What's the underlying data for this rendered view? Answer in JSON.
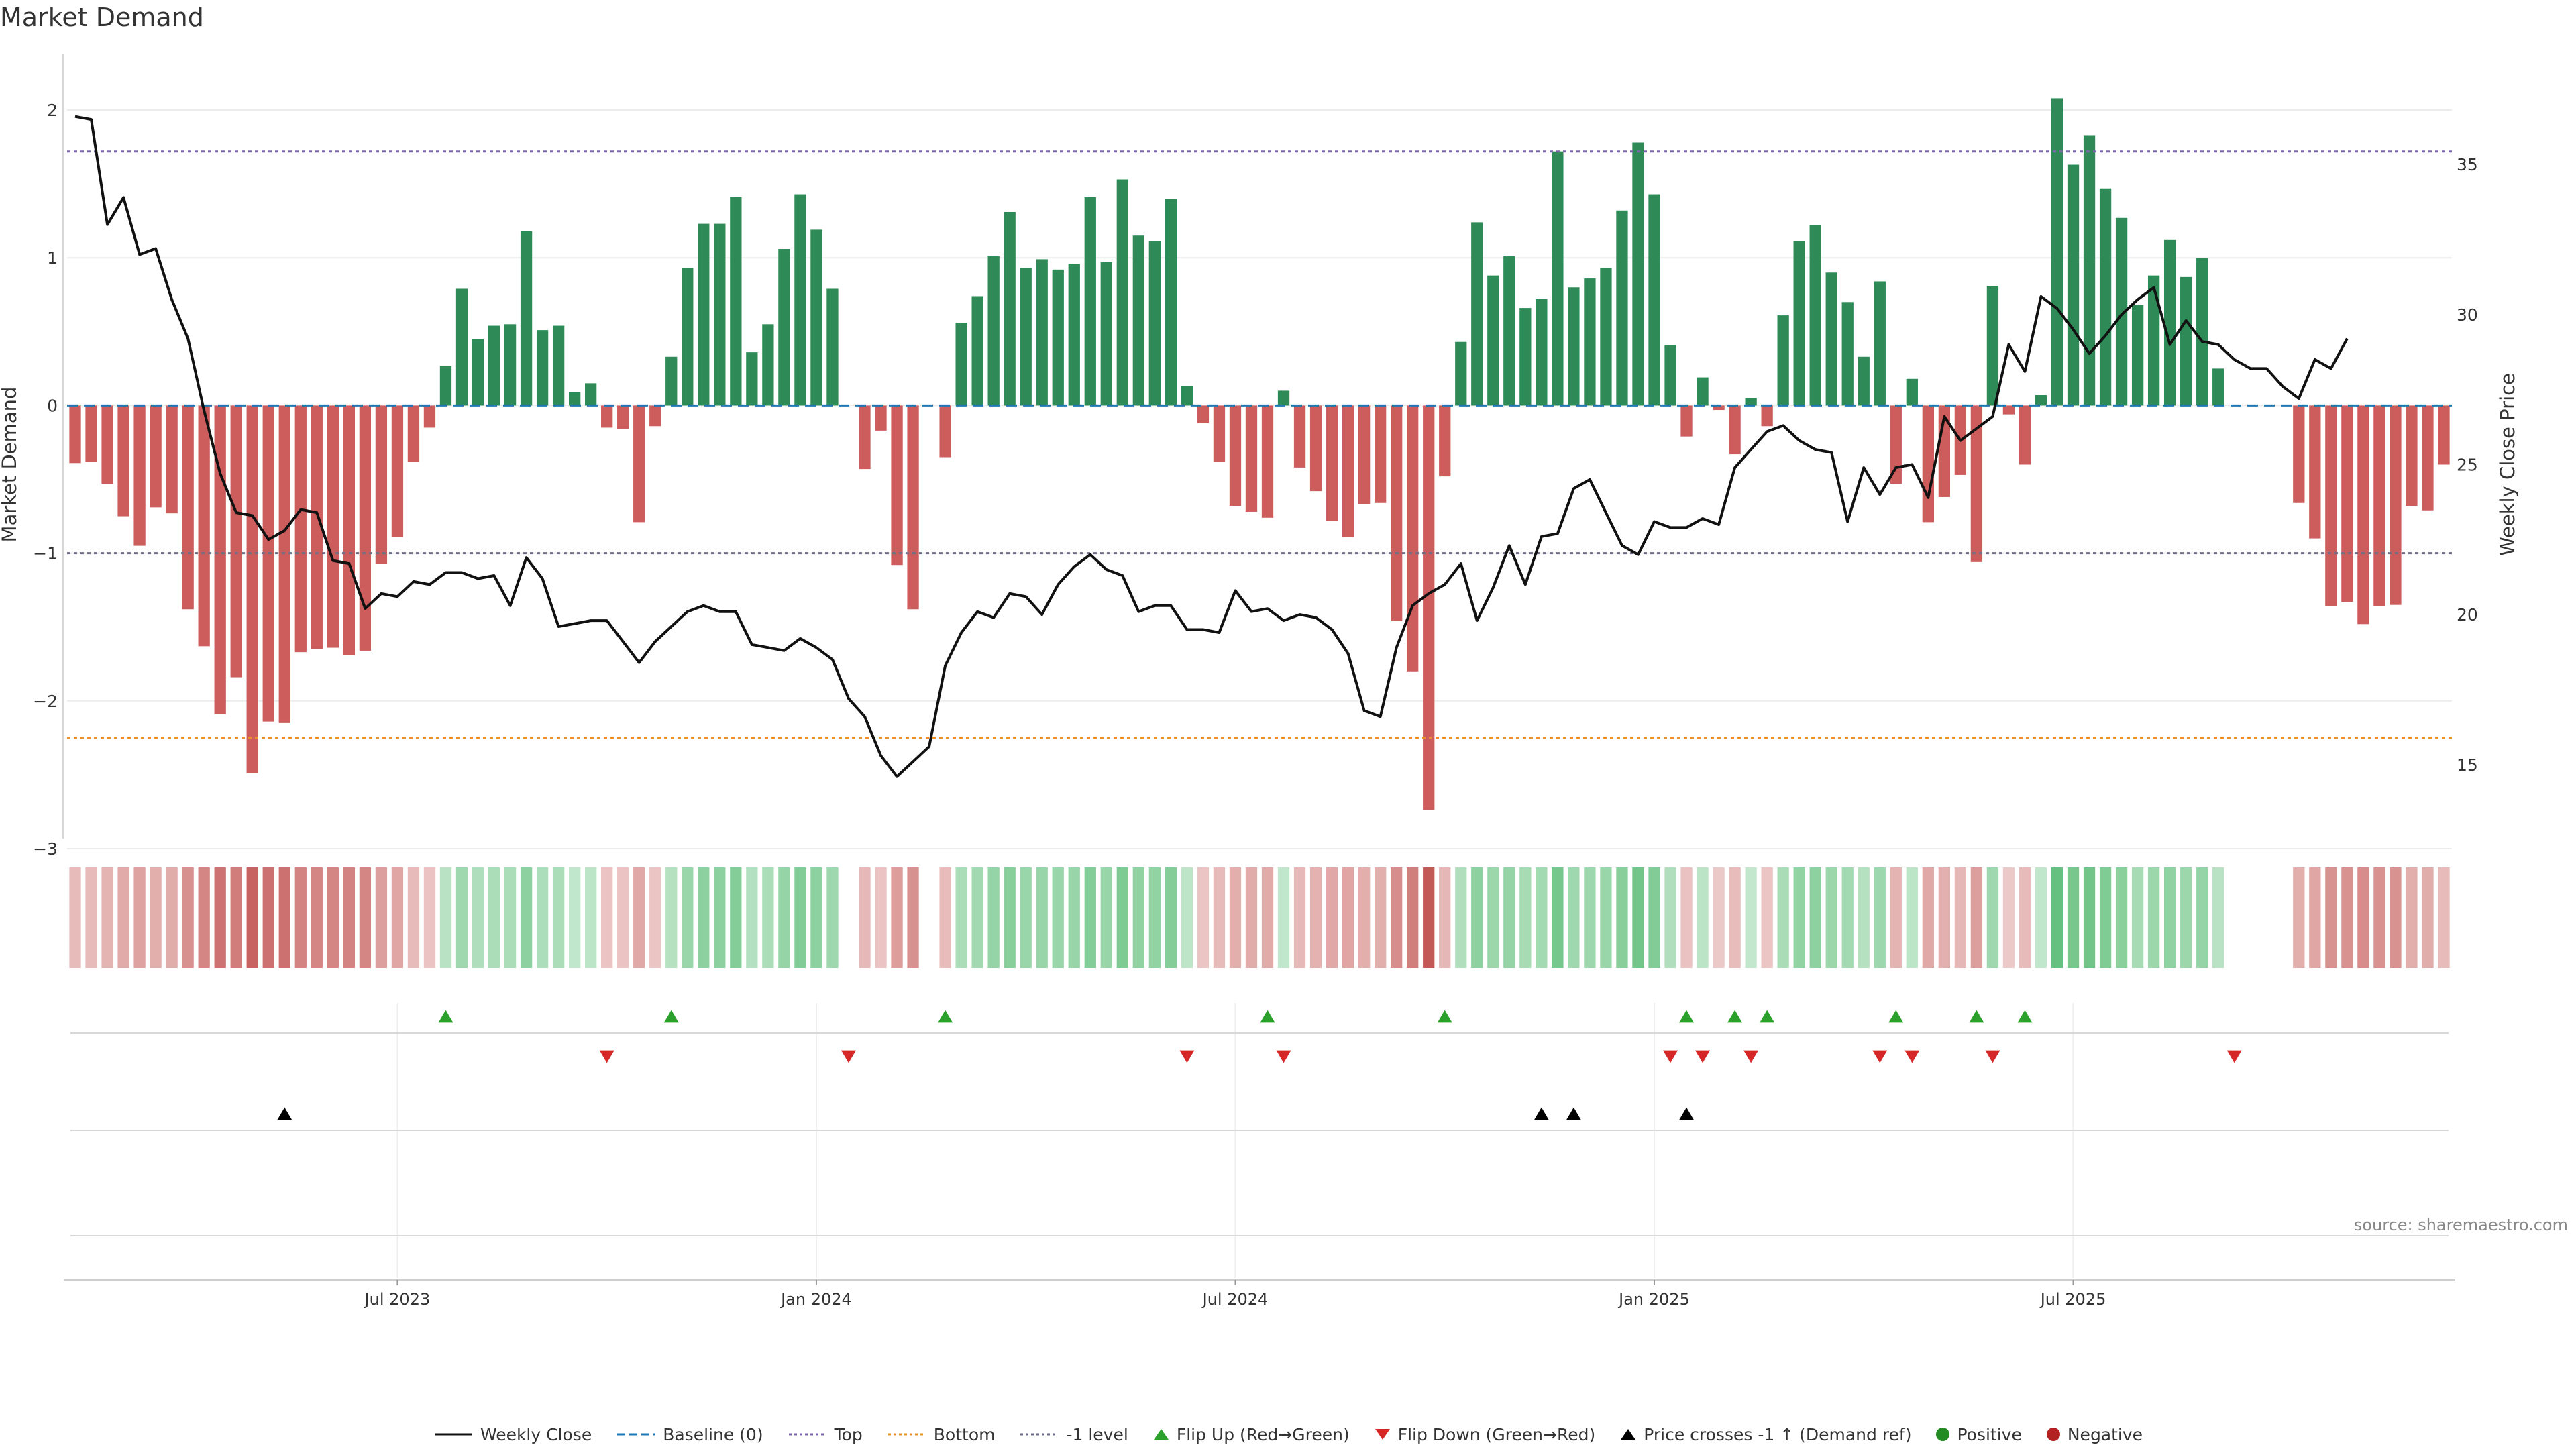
{
  "title": "Market Demand",
  "source": "source: sharemaestro.com",
  "colors": {
    "positive": "#2e8b57",
    "negative": "#cd5c5c",
    "price": "#111111",
    "baseline": "#1f77b4",
    "top": "#7b68a8",
    "bottom": "#e8912d",
    "level": "#6d6d8a",
    "flip_up": "#2ca02c",
    "flip_down": "#d62728",
    "cross": "#000000",
    "pos_dot": "#228b22",
    "neg_dot": "#b22222"
  },
  "chart_data": {
    "type": "bar",
    "title": "Market Demand",
    "ylabel": "Market Demand",
    "y2label": "Weekly Close Price",
    "ylim": [
      -3,
      2.2
    ],
    "y2lim": [
      12.2,
      37.8
    ],
    "yticks": [
      2,
      1,
      0,
      -1,
      -2,
      -3
    ],
    "ytick_labels": [
      "2",
      "1",
      "0",
      "−1",
      "−2",
      "−3"
    ],
    "y2ticks": [
      35,
      30,
      25,
      20,
      15
    ],
    "y2tick_labels": [
      "35",
      "30",
      "25",
      "20",
      "15"
    ],
    "xticks": [
      {
        "week": 20,
        "label": "Jul 2023"
      },
      {
        "week": 46,
        "label": "Jan 2024"
      },
      {
        "week": 72,
        "label": "Jul 2024"
      },
      {
        "week": 98,
        "label": "Jan 2025"
      },
      {
        "week": 124,
        "label": "Jul 2025"
      }
    ],
    "reference_lines": {
      "baseline": 0,
      "top": 1.72,
      "bottom": -2.25,
      "minus_one": -1
    },
    "demand": [
      -0.39,
      -0.38,
      -0.53,
      -0.75,
      -0.95,
      -0.69,
      -0.73,
      -1.38,
      -1.63,
      -2.09,
      -1.84,
      -2.49,
      -2.14,
      -2.15,
      -1.67,
      -1.65,
      -1.64,
      -1.69,
      -1.66,
      -1.07,
      -0.89,
      -0.38,
      -0.15,
      0.27,
      0.79,
      0.45,
      0.54,
      0.55,
      1.18,
      0.51,
      0.54,
      0.09,
      0.15,
      -0.15,
      -0.16,
      -0.79,
      -0.14,
      0.33,
      0.93,
      1.23,
      1.23,
      1.41,
      0.36,
      0.55,
      1.06,
      1.43,
      1.19,
      0.79,
      0.0,
      -0.43,
      -0.17,
      -1.08,
      -1.38,
      0.0,
      -0.35,
      0.56,
      0.74,
      1.01,
      1.31,
      0.93,
      0.99,
      0.92,
      0.96,
      1.41,
      0.97,
      1.53,
      1.15,
      1.11,
      1.4,
      0.13,
      -0.12,
      -0.38,
      -0.68,
      -0.72,
      -0.76,
      0.1,
      -0.42,
      -0.58,
      -0.78,
      -0.89,
      -0.67,
      -0.66,
      -1.46,
      -1.8,
      -2.74,
      -0.48,
      0.43,
      1.24,
      0.88,
      1.01,
      0.66,
      0.72,
      1.72,
      0.8,
      0.86,
      0.93,
      1.32,
      1.78,
      1.43,
      0.41,
      -0.21,
      0.19,
      -0.03,
      -0.33,
      0.05,
      -0.14,
      0.61,
      1.11,
      1.22,
      0.9,
      0.7,
      0.33,
      0.84,
      -0.53,
      0.18,
      -0.79,
      -0.62,
      -0.47,
      -1.06,
      0.81,
      -0.06,
      -0.4,
      0.07,
      2.08,
      1.63,
      1.83,
      1.47,
      1.27,
      0.68,
      0.88,
      1.12,
      0.87,
      1.0,
      0.25,
      0.0,
      0.0,
      0.0,
      0.0,
      -0.66,
      -0.9,
      -1.36,
      -1.33,
      -1.48,
      -1.36,
      -1.35,
      -0.68,
      -0.71,
      -0.4
    ],
    "weekly_close": [
      36.6,
      36.5,
      33.0,
      33.9,
      32.0,
      32.2,
      30.5,
      29.2,
      26.8,
      24.7,
      23.4,
      23.3,
      22.5,
      22.8,
      23.5,
      23.4,
      21.8,
      21.7,
      20.2,
      20.7,
      20.6,
      21.1,
      21.0,
      21.4,
      21.4,
      21.2,
      21.3,
      20.3,
      21.9,
      21.2,
      19.6,
      19.7,
      19.8,
      19.8,
      19.1,
      18.4,
      19.1,
      19.6,
      20.1,
      20.3,
      20.1,
      20.1,
      19.0,
      18.9,
      18.8,
      19.2,
      18.9,
      18.5,
      17.2,
      16.6,
      15.3,
      14.6,
      15.1,
      15.6,
      18.3,
      19.4,
      20.1,
      19.9,
      20.7,
      20.6,
      20.0,
      21.0,
      21.6,
      22.0,
      21.5,
      21.3,
      20.1,
      20.3,
      20.3,
      19.5,
      19.5,
      19.4,
      20.8,
      20.1,
      20.2,
      19.8,
      20.0,
      19.9,
      19.5,
      18.7,
      16.8,
      16.6,
      18.9,
      20.3,
      20.7,
      21.0,
      21.7,
      19.8,
      20.9,
      22.3,
      21.0,
      22.6,
      22.7,
      24.2,
      24.5,
      23.4,
      22.3,
      22.0,
      23.1,
      22.9,
      22.9,
      23.2,
      23.0,
      24.9,
      25.5,
      26.1,
      26.3,
      25.8,
      25.5,
      25.4,
      23.1,
      24.9,
      24.0,
      24.9,
      25.0,
      23.9,
      26.6,
      25.8,
      26.2,
      26.6,
      29.0,
      28.1,
      30.6,
      30.2,
      29.5,
      28.7,
      29.3,
      30.0,
      30.5,
      30.9,
      29.0,
      29.8,
      29.1,
      29.0,
      28.5,
      28.2,
      28.2,
      27.6,
      27.2,
      28.5,
      28.2,
      29.2
    ],
    "flip_up_weeks": [
      23,
      37,
      54,
      74,
      85,
      100,
      103,
      105,
      113,
      118,
      121
    ],
    "flip_down_weeks": [
      33,
      48,
      69,
      75,
      99,
      101,
      104,
      112,
      114,
      119,
      134
    ],
    "price_cross_weeks": [
      13,
      91,
      93,
      100
    ]
  },
  "legend": [
    {
      "icon": "line-solid",
      "color": "#111111",
      "label": "Weekly Close"
    },
    {
      "icon": "line-dashed",
      "color": "#1f77b4",
      "label": "Baseline (0)"
    },
    {
      "icon": "line-dotted",
      "color": "#7b68a8",
      "label": "Top"
    },
    {
      "icon": "line-dotted",
      "color": "#e8912d",
      "label": "Bottom"
    },
    {
      "icon": "line-dotted",
      "color": "#6d6d8a",
      "label": "-1 level"
    },
    {
      "icon": "triangle-up",
      "color": "#2ca02c",
      "label": "Flip Up (Red→Green)"
    },
    {
      "icon": "triangle-down",
      "color": "#d62728",
      "label": "Flip Down (Green→Red)"
    },
    {
      "icon": "triangle-up",
      "color": "#000000",
      "label": "Price crosses -1 ↑ (Demand ref)"
    },
    {
      "icon": "circle",
      "color": "#228b22",
      "label": "Positive"
    },
    {
      "icon": "circle",
      "color": "#b22222",
      "label": "Negative"
    }
  ]
}
